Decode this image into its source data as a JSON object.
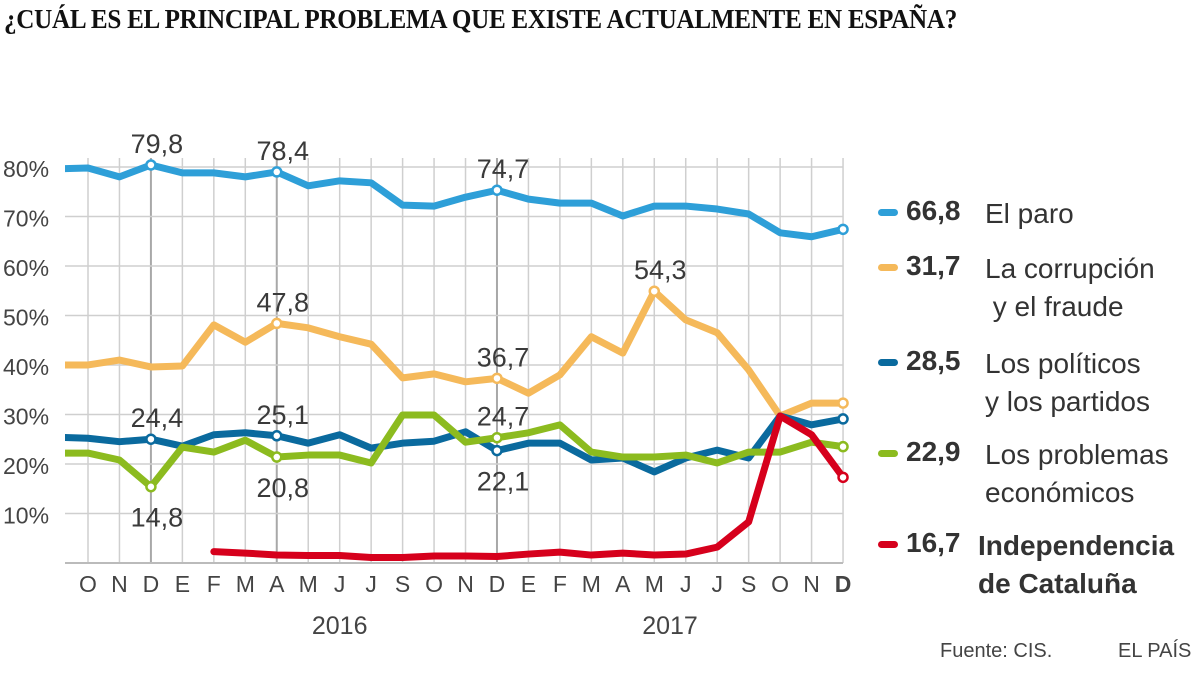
{
  "chart_data": {
    "type": "line",
    "title": "¿CUÁL ES EL PRINCIPAL PROBLEMA QUE EXISTE ACTUALMENTE EN ESPAÑA?",
    "categories": [
      "",
      "O",
      "N",
      "D",
      "E",
      "F",
      "M",
      "A",
      "M",
      "J",
      "J",
      "S",
      "O",
      "N",
      "D",
      "E",
      "F",
      "M",
      "A",
      "M",
      "J",
      "J",
      "S",
      "O",
      "N",
      "D"
    ],
    "years": [
      {
        "label": "2016",
        "center_index": 9
      },
      {
        "label": "2017",
        "center_index": 19.5
      }
    ],
    "ylim": [
      0,
      80
    ],
    "yticks": [
      10,
      20,
      30,
      40,
      50,
      60,
      70,
      80
    ],
    "ytick_labels": [
      "10%",
      "20%",
      "30%",
      "40%",
      "50%",
      "60%",
      "70%",
      "80%"
    ],
    "grid": true,
    "legend_position": "right",
    "series": [
      {
        "name": "El paro",
        "legend_value": "66,8",
        "legend_lines": [
          "El paro"
        ],
        "color": "#2e9fd8",
        "values": [
          79.0,
          79.2,
          77.4,
          79.8,
          78.2,
          78.2,
          77.4,
          78.4,
          75.6,
          76.6,
          76.2,
          71.7,
          71.5,
          73.3,
          74.7,
          72.9,
          72.1,
          72.1,
          69.5,
          71.5,
          71.5,
          70.9,
          69.9,
          66.1,
          65.3,
          66.8
        ]
      },
      {
        "name": "La corrupción y el fraude",
        "legend_value": "31,7",
        "legend_lines": [
          "La corrupción",
          " y el fraude"
        ],
        "color": "#f5b95a",
        "values": [
          39.4,
          39.4,
          40.4,
          39.0,
          39.2,
          47.5,
          44.0,
          47.8,
          46.9,
          45.1,
          43.6,
          36.8,
          37.6,
          36.0,
          36.7,
          33.7,
          37.4,
          45.1,
          41.8,
          54.3,
          48.5,
          45.9,
          38.4,
          29.1,
          31.7,
          31.7
        ]
      },
      {
        "name": "Los políticos y los partidos",
        "legend_value": "28,5",
        "legend_lines": [
          "Los políticos",
          "y los partidos"
        ],
        "color": "#0a6a9e",
        "values": [
          24.8,
          24.6,
          23.9,
          24.4,
          23.0,
          25.3,
          25.7,
          25.1,
          23.6,
          25.3,
          22.6,
          23.6,
          24.0,
          25.9,
          22.1,
          23.6,
          23.6,
          20.2,
          20.6,
          17.8,
          20.6,
          22.2,
          20.6,
          29.1,
          27.3,
          28.5
        ]
      },
      {
        "name": "Los problemas económicos",
        "legend_value": "22,9",
        "legend_lines": [
          "Los problemas",
          "económicos"
        ],
        "color": "#8cbb1f",
        "values": [
          21.6,
          21.6,
          20.2,
          14.8,
          22.8,
          21.8,
          24.2,
          20.8,
          21.2,
          21.2,
          19.6,
          29.3,
          29.3,
          23.8,
          24.7,
          25.7,
          27.3,
          21.8,
          20.8,
          20.8,
          21.2,
          19.6,
          21.8,
          21.8,
          23.8,
          22.9
        ]
      },
      {
        "name": "Independencia de Cataluña",
        "legend_value": "16,7",
        "legend_lines": [
          "Independencia",
          "de Cataluña"
        ],
        "legend_bold": true,
        "color": "#d6001c",
        "values": [
          null,
          null,
          null,
          null,
          null,
          1.7,
          1.4,
          1.0,
          0.9,
          0.9,
          0.5,
          0.5,
          0.8,
          0.8,
          0.7,
          1.2,
          1.6,
          1.0,
          1.4,
          1.0,
          1.2,
          2.6,
          7.7,
          29.1,
          25.3,
          16.7
        ]
      }
    ],
    "annotations": [
      {
        "series": 0,
        "index": 3,
        "label": "79,8",
        "pos": "above"
      },
      {
        "series": 0,
        "index": 7,
        "label": "78,4",
        "pos": "above"
      },
      {
        "series": 0,
        "index": 14,
        "label": "74,7",
        "pos": "above"
      },
      {
        "series": 1,
        "index": 7,
        "label": "47,8",
        "pos": "above"
      },
      {
        "series": 1,
        "index": 14,
        "label": "36,7",
        "pos": "above"
      },
      {
        "series": 1,
        "index": 19,
        "label": "54,3",
        "pos": "above"
      },
      {
        "series": 2,
        "index": 3,
        "label": "24,4",
        "pos": "above"
      },
      {
        "series": 2,
        "index": 7,
        "label": "25,1",
        "pos": "above"
      },
      {
        "series": 2,
        "index": 14,
        "label": "22,1",
        "pos": "below"
      },
      {
        "series": 3,
        "index": 3,
        "label": "14,8",
        "pos": "below"
      },
      {
        "series": 3,
        "index": 7,
        "label": "20,8",
        "pos": "below"
      },
      {
        "series": 3,
        "index": 14,
        "label": "24,7",
        "pos": "above"
      }
    ]
  },
  "footer": {
    "source": "Fuente: CIS.",
    "brand": "EL PAÍS"
  }
}
